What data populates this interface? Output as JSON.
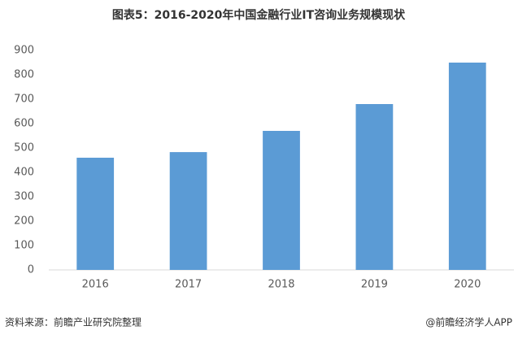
{
  "chart_data": {
    "type": "bar",
    "title": "图表5：2016-2020年中国金融行业IT咨询业务规模现状",
    "categories": [
      "2016",
      "2017",
      "2018",
      "2019",
      "2020"
    ],
    "values": [
      460,
      483,
      570,
      680,
      850
    ],
    "color": "#5b9bd5",
    "ylim": [
      0,
      900
    ],
    "yticks": [
      0,
      100,
      200,
      300,
      400,
      500,
      600,
      700,
      800,
      900
    ],
    "grid": false
  },
  "footer": {
    "source": "资料来源：前瞻产业研究院整理",
    "credit": "@前瞻经济学人APP"
  }
}
